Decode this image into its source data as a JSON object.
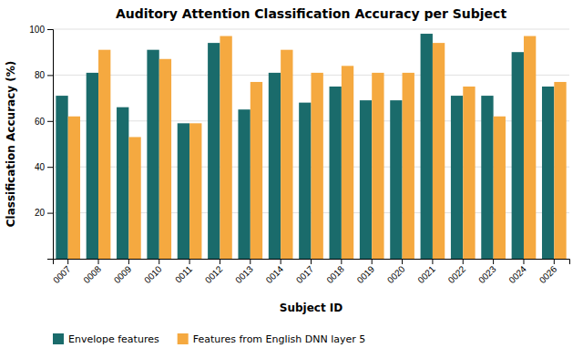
{
  "chart_data": {
    "type": "bar",
    "title": "Auditory Attention Classification Accuracy per Subject",
    "xlabel": "Subject ID",
    "ylabel": "Classification Accuracy (%)",
    "categories": [
      "0007",
      "0008",
      "0009",
      "0010",
      "0011",
      "0012",
      "0013",
      "0014",
      "0017",
      "0018",
      "0019",
      "0020",
      "0021",
      "0022",
      "0023",
      "0024",
      "0026"
    ],
    "series": [
      {
        "name": "Envelope features",
        "color": "#1a6b6b",
        "values": [
          71,
          81,
          66,
          91,
          59,
          94,
          65,
          81,
          68,
          75,
          69,
          69,
          98,
          71,
          71,
          90,
          75
        ]
      },
      {
        "name": "Features from English DNN layer 5",
        "color": "#f5a940",
        "values": [
          62,
          91,
          53,
          87,
          59,
          97,
          77,
          91,
          81,
          84,
          81,
          81,
          94,
          75,
          62,
          97,
          77
        ]
      }
    ],
    "ylim": [
      0,
      100
    ],
    "yticks": [
      20,
      40,
      60,
      80,
      100
    ],
    "grid": true,
    "legend": "lower left"
  }
}
